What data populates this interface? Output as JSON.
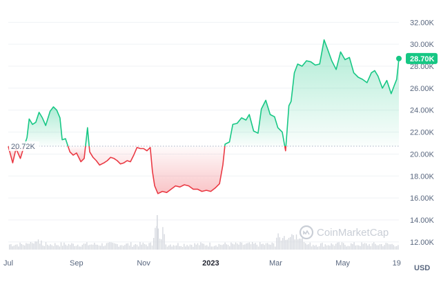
{
  "chart_data": {
    "type": "area",
    "series": [
      {
        "x": [
          "Jul 1",
          "Jul 5",
          "Jul 8",
          "Jul 12",
          "Jul 15",
          "Jul 18",
          "Jul 20",
          "Jul 23",
          "Jul 26",
          "Jul 29",
          "Aug 1",
          "Aug 4",
          "Aug 8",
          "Aug 11",
          "Aug 14",
          "Aug 17",
          "Aug 19",
          "Aug 22",
          "Aug 26",
          "Aug 29",
          "Sep 1",
          "Sep 5",
          "Sep 8",
          "Sep 11",
          "Sep 13",
          "Sep 16",
          "Sep 19",
          "Sep 22",
          "Sep 26",
          "Sep 29",
          "Oct 2",
          "Oct 5",
          "Oct 8",
          "Oct 11",
          "Oct 14",
          "Oct 17",
          "Oct 20",
          "Oct 23",
          "Oct 26",
          "Oct 29",
          "Nov 1",
          "Nov 4",
          "Nov 7",
          "Nov 9",
          "Nov 11",
          "Nov 14",
          "Nov 18",
          "Nov 22",
          "Nov 26",
          "Nov 30",
          "Dec 4",
          "Dec 8",
          "Dec 12",
          "Dec 16",
          "Dec 20",
          "Dec 24",
          "Dec 28",
          "Jan 1",
          "Jan 5",
          "Jan 9",
          "Jan 12",
          "Jan 14",
          "Jan 18",
          "Jan 21",
          "Jan 25",
          "Jan 29",
          "Feb 2",
          "Feb 5",
          "Feb 9",
          "Feb 13",
          "Feb 16",
          "Feb 20",
          "Feb 24",
          "Feb 28",
          "Mar 3",
          "Mar 7",
          "Mar 10",
          "Mar 13",
          "Mar 15",
          "Mar 18",
          "Mar 21",
          "Mar 25",
          "Mar 29",
          "Apr 2",
          "Apr 6",
          "Apr 10",
          "Apr 14",
          "Apr 17",
          "Apr 21",
          "Apr 25",
          "Apr 29",
          "May 3",
          "May 7",
          "May 11",
          "May 15",
          "May 19",
          "May 23",
          "May 27",
          "May 30",
          "Jun 2",
          "Jun 6",
          "Jun 10",
          "Jun 14",
          "Jun 17",
          "Jun 19",
          "Jun 21"
        ],
        "values": [
          20.7,
          19.2,
          20.5,
          19.6,
          20.6,
          21.5,
          23.2,
          22.7,
          22.9,
          23.8,
          23.3,
          22.6,
          23.9,
          24.3,
          24.0,
          23.3,
          21.3,
          21.4,
          20.2,
          19.9,
          20.1,
          19.3,
          19.6,
          22.4,
          20.2,
          19.7,
          19.4,
          19.0,
          19.2,
          19.4,
          19.7,
          19.6,
          19.4,
          19.1,
          19.2,
          19.4,
          19.3,
          19.9,
          20.6,
          20.5,
          20.5,
          20.3,
          20.6,
          18.4,
          17.1,
          16.4,
          16.6,
          16.5,
          16.8,
          17.1,
          17.0,
          17.2,
          17.1,
          16.8,
          16.8,
          16.6,
          16.7,
          16.6,
          16.9,
          17.3,
          19.0,
          20.9,
          21.1,
          22.7,
          22.8,
          23.3,
          23.1,
          23.6,
          22.1,
          21.9,
          24.1,
          24.9,
          23.6,
          23.4,
          22.4,
          22.0,
          20.3,
          24.4,
          24.8,
          27.4,
          28.2,
          28.0,
          28.5,
          28.4,
          28.1,
          28.2,
          30.4,
          29.6,
          28.5,
          27.7,
          29.3,
          28.6,
          28.8,
          27.4,
          27.0,
          26.8,
          26.5,
          27.4,
          27.6,
          27.1,
          26.0,
          26.7,
          25.5,
          26.3,
          26.8,
          28.7
        ]
      }
    ],
    "reference_value": 20.72,
    "reference_label": "20.72K",
    "last_value_label": "28.70K",
    "y_ticks": [
      "12.00K",
      "14.00K",
      "16.00K",
      "18.00K",
      "20.00K",
      "22.00K",
      "24.00K",
      "26.00K",
      "28.00K",
      "30.00K",
      "32.00K"
    ],
    "y_tick_values": [
      12,
      14,
      16,
      18,
      20,
      22,
      24,
      26,
      28,
      30,
      32
    ],
    "x_ticks": [
      "Jul",
      "Sep",
      "Nov",
      "2023",
      "Mar",
      "May",
      "19"
    ],
    "x_tick_dates": [
      "Jul 1",
      "Sep 1",
      "Nov 1",
      "Jan 1",
      "Mar 1",
      "May 1",
      "Jun 19"
    ],
    "ylim": [
      11.3,
      32.9
    ],
    "xlim": [
      "Jul 1",
      "Jun 21"
    ],
    "unit_label": "USD",
    "watermark": "CoinMarketCap",
    "grid": true,
    "colors": {
      "up": "#16c784",
      "down": "#ea3943",
      "up_fill": "#16c784",
      "down_fill": "#ea3943",
      "grid": "#eff2f5",
      "volume": "#d6d9df",
      "axis_text": "#58667e",
      "badge": "#16c784"
    }
  }
}
